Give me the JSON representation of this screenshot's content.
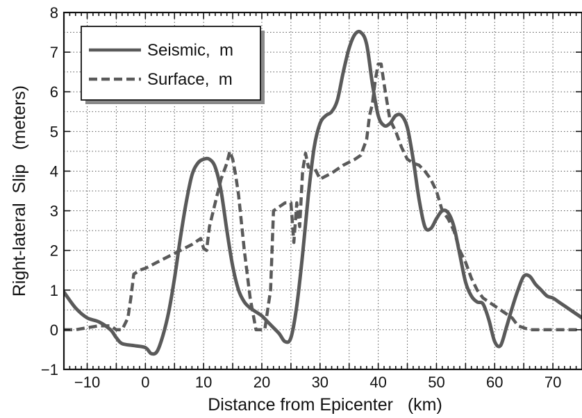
{
  "chart_data": {
    "type": "line",
    "xlabel": "Distance from Epicenter   (km)",
    "ylabel": "Right-lateral  Slip   (meters)",
    "xlim": [
      -14,
      75
    ],
    "ylim": [
      -1,
      8
    ],
    "xticks": [
      -10,
      0,
      10,
      20,
      30,
      40,
      50,
      60,
      70
    ],
    "xtick_labels": [
      "−10",
      "0",
      "10",
      "20",
      "30",
      "40",
      "50",
      "60",
      "70"
    ],
    "yticks": [
      -1,
      0,
      1,
      2,
      3,
      4,
      5,
      6,
      7,
      8
    ],
    "ytick_labels": [
      "−1",
      "0",
      "1",
      "2",
      "3",
      "4",
      "5",
      "6",
      "7",
      "8"
    ],
    "x_gridlines": [
      -10,
      -5,
      0,
      5,
      10,
      15,
      20,
      25,
      30,
      35,
      40,
      45,
      50,
      55,
      60,
      65,
      70,
      75
    ],
    "y_gridlines": [
      0,
      0.5,
      1,
      1.5,
      2,
      2.5,
      3,
      3.5,
      4,
      4.5,
      5,
      5.5,
      6,
      6.5,
      7,
      7.5
    ],
    "grid": true,
    "legend_position": "top-left",
    "series": [
      {
        "name": "Seismic,  m",
        "style": "solid",
        "color": "#5a5a5a",
        "x": [
          -14,
          -12,
          -10,
          -8,
          -6,
          -5,
          -4,
          -2,
          0,
          1,
          2,
          3,
          4,
          5,
          6,
          7,
          8,
          9,
          10,
          11,
          12,
          13,
          14,
          15,
          16,
          17,
          18,
          19,
          20,
          21,
          22,
          23,
          24,
          25,
          26,
          27,
          28,
          29,
          30,
          31,
          32,
          33,
          34,
          35,
          36,
          37,
          38,
          39,
          40,
          41,
          42,
          43,
          44,
          45,
          46,
          47,
          48,
          49,
          50,
          51,
          52,
          53,
          54,
          55,
          56,
          57,
          58,
          59,
          60,
          61,
          62,
          63,
          64,
          65,
          66,
          67,
          68,
          69,
          70,
          71,
          72,
          73,
          74,
          75
        ],
        "y": [
          0.95,
          0.55,
          0.3,
          0.2,
          0.0,
          -0.2,
          -0.35,
          -0.4,
          -0.45,
          -0.6,
          -0.55,
          -0.15,
          0.45,
          1.3,
          2.3,
          3.2,
          3.9,
          4.2,
          4.3,
          4.3,
          4.1,
          3.5,
          2.5,
          1.6,
          1.0,
          0.7,
          0.55,
          0.45,
          0.35,
          0.2,
          0.05,
          -0.1,
          -0.3,
          -0.2,
          0.6,
          1.9,
          3.4,
          4.6,
          5.2,
          5.4,
          5.5,
          5.8,
          6.5,
          7.1,
          7.45,
          7.5,
          7.2,
          6.2,
          5.4,
          5.15,
          5.2,
          5.4,
          5.4,
          5.1,
          4.3,
          3.3,
          2.6,
          2.55,
          2.8,
          3.0,
          2.95,
          2.6,
          1.9,
          1.2,
          0.85,
          0.7,
          0.65,
          0.25,
          -0.3,
          -0.4,
          0.05,
          0.55,
          1.0,
          1.35,
          1.35,
          1.15,
          1.0,
          0.85,
          0.8,
          0.7,
          0.6,
          0.5,
          0.4,
          0.3
        ],
        "x_override": true
      },
      {
        "name": "Surface,  m",
        "style": "dashed",
        "color": "#5a5a5a",
        "x": [
          -14,
          -12,
          -10,
          -8,
          -6,
          -5,
          -4,
          -3,
          -2.5,
          -2,
          -1,
          0,
          2,
          4,
          6,
          8,
          9.5,
          10,
          10.5,
          11,
          12,
          13,
          14,
          14.5,
          15,
          15.5,
          16,
          17,
          18,
          19,
          19.5,
          20,
          20.5,
          21,
          21.5,
          22,
          23,
          24,
          25,
          25.5,
          26,
          26.5,
          27,
          27.5,
          28,
          29,
          30,
          32,
          34,
          36,
          37,
          38,
          38.5,
          39,
          39.5,
          40,
          40.5,
          41,
          42,
          43,
          44,
          45,
          46,
          47,
          48,
          49,
          50,
          51,
          52,
          53,
          54,
          55,
          56,
          57,
          58,
          59,
          60,
          61,
          62,
          63,
          64,
          66,
          68,
          70,
          72,
          75
        ],
        "y": [
          0.0,
          0.0,
          0.05,
          0.1,
          0.1,
          0.0,
          0.0,
          0.3,
          0.8,
          1.4,
          1.5,
          1.55,
          1.7,
          1.85,
          2.0,
          2.15,
          2.3,
          2.05,
          2.0,
          2.6,
          3.2,
          3.8,
          4.2,
          4.5,
          4.3,
          3.9,
          3.4,
          2.0,
          0.8,
          0.0,
          0.0,
          0.0,
          0.0,
          0.5,
          1.0,
          3.0,
          3.1,
          3.2,
          3.2,
          2.2,
          3.2,
          2.6,
          4.0,
          4.45,
          4.1,
          4.1,
          3.8,
          3.95,
          4.15,
          4.3,
          4.4,
          4.8,
          5.4,
          5.7,
          6.3,
          6.7,
          6.7,
          6.2,
          5.3,
          5.0,
          4.6,
          4.3,
          4.2,
          4.15,
          4.0,
          3.8,
          3.5,
          3.0,
          2.8,
          2.5,
          2.0,
          1.7,
          1.3,
          1.0,
          0.8,
          0.7,
          0.6,
          0.5,
          0.4,
          0.3,
          0.1,
          0.0,
          0.0,
          0.0,
          0.0,
          0.0
        ]
      }
    ]
  }
}
